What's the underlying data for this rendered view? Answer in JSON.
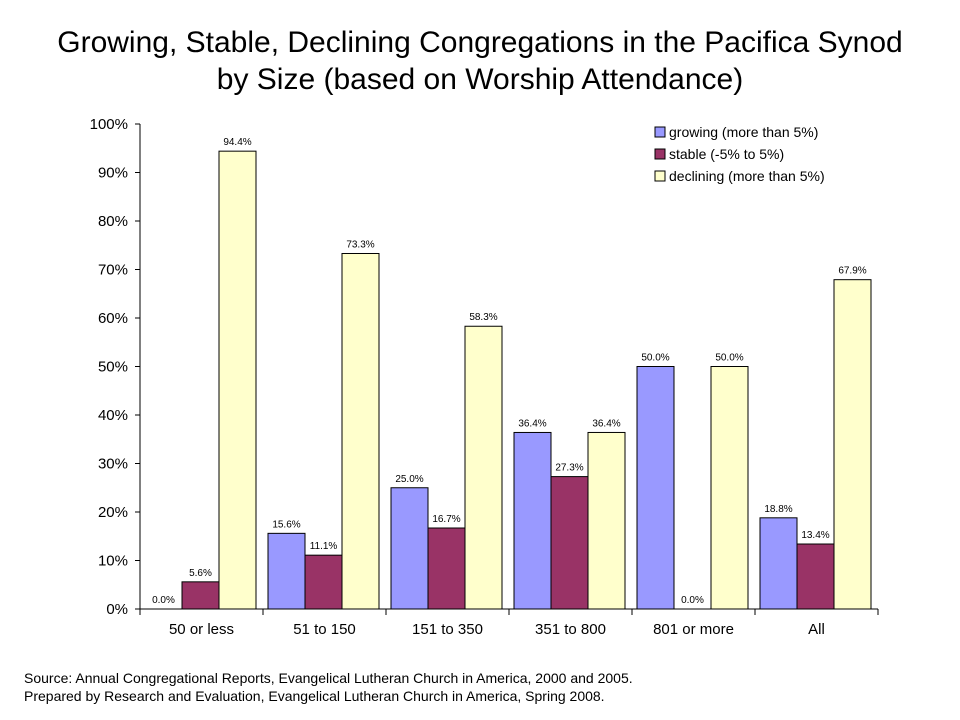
{
  "chart_data": {
    "type": "bar",
    "title": [
      "Growing, Stable, Declining Congregations in the Pacifica Synod",
      "by Size (based on Worship Attendance)"
    ],
    "categories": [
      "50 or less",
      "51 to 150",
      "151 to 350",
      "351 to 800",
      "801 or more",
      "All"
    ],
    "series": [
      {
        "name": "growing (more than 5%)",
        "color": "#9999FF",
        "values": [
          0.0,
          15.6,
          25.0,
          36.4,
          50.0,
          18.8
        ],
        "labels": [
          "0.0%",
          "15.6%",
          "25.0%",
          "36.4%",
          "50.0%",
          "18.8%"
        ]
      },
      {
        "name": "stable (-5% to 5%)",
        "color": "#993366",
        "values": [
          5.6,
          11.1,
          16.7,
          27.3,
          0.0,
          13.4
        ],
        "labels": [
          "5.6%",
          "11.1%",
          "16.7%",
          "27.3%",
          "0.0%",
          "13.4%"
        ]
      },
      {
        "name": "declining (more than 5%)",
        "color": "#FFFFCC",
        "values": [
          94.4,
          73.3,
          58.3,
          36.4,
          50.0,
          67.9
        ],
        "labels": [
          "94.4%",
          "73.3%",
          "58.3%",
          "36.4%",
          "50.0%",
          "67.9%"
        ]
      }
    ],
    "yticks": [
      "0%",
      "10%",
      "20%",
      "30%",
      "40%",
      "50%",
      "60%",
      "70%",
      "80%",
      "90%",
      "100%"
    ],
    "ylim": [
      0,
      100
    ],
    "legend_position": "top-right",
    "grid": false
  },
  "footnote": {
    "line1": "Source:  Annual Congregational Reports, Evangelical Lutheran Church in America, 2000 and 2005.",
    "line2": "Prepared by Research and Evaluation, Evangelical Lutheran Church in America, Spring 2008."
  }
}
